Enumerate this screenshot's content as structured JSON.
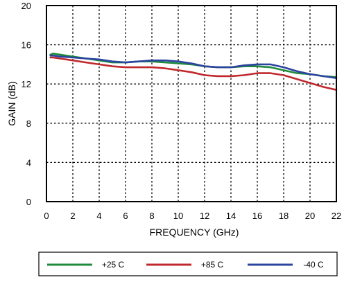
{
  "chart_data": {
    "type": "line",
    "title": "",
    "xlabel": "FREQUENCY (GHz)",
    "ylabel": "GAIN (dB)",
    "xlim": [
      0,
      22
    ],
    "ylim": [
      0,
      20
    ],
    "xticks": [
      0,
      2,
      4,
      6,
      8,
      10,
      12,
      14,
      16,
      18,
      20,
      22
    ],
    "yticks": [
      0,
      4,
      8,
      12,
      16,
      20
    ],
    "grid": true,
    "grid_style": "dotted",
    "legend_position": "bottom",
    "series": [
      {
        "name": "+25 C",
        "color": "#1f8a3c",
        "x": [
          0.3,
          0.5,
          1,
          2,
          3,
          4,
          5,
          6,
          7,
          8,
          9,
          10,
          11,
          12,
          13,
          14,
          15,
          16,
          17,
          18,
          19,
          20,
          21,
          22
        ],
        "y": [
          15.0,
          15.1,
          15.0,
          14.8,
          14.6,
          14.4,
          14.2,
          14.2,
          14.3,
          14.3,
          14.2,
          14.1,
          14.0,
          13.8,
          13.7,
          13.7,
          13.8,
          13.8,
          13.7,
          13.4,
          13.1,
          13.0,
          12.8,
          12.7
        ]
      },
      {
        "name": "+85 C",
        "color": "#c0282d",
        "x": [
          0.3,
          0.5,
          1,
          2,
          3,
          4,
          5,
          6,
          7,
          8,
          9,
          10,
          11,
          12,
          13,
          14,
          15,
          16,
          17,
          18,
          19,
          20,
          21,
          22
        ],
        "y": [
          14.7,
          14.7,
          14.6,
          14.4,
          14.2,
          14.0,
          13.8,
          13.7,
          13.7,
          13.7,
          13.6,
          13.4,
          13.2,
          12.9,
          12.8,
          12.8,
          12.9,
          13.1,
          13.1,
          12.9,
          12.5,
          12.1,
          11.7,
          11.4
        ]
      },
      {
        "name": "-40 C",
        "color": "#2b44a0",
        "x": [
          0.3,
          0.5,
          1,
          2,
          3,
          4,
          5,
          6,
          7,
          8,
          9,
          10,
          11,
          12,
          13,
          14,
          15,
          16,
          17,
          18,
          19,
          20,
          21,
          22
        ],
        "y": [
          14.9,
          14.9,
          14.8,
          14.7,
          14.6,
          14.5,
          14.3,
          14.2,
          14.3,
          14.4,
          14.4,
          14.3,
          14.1,
          13.8,
          13.7,
          13.7,
          13.9,
          14.0,
          14.0,
          13.7,
          13.3,
          13.0,
          12.8,
          12.6
        ]
      }
    ]
  }
}
